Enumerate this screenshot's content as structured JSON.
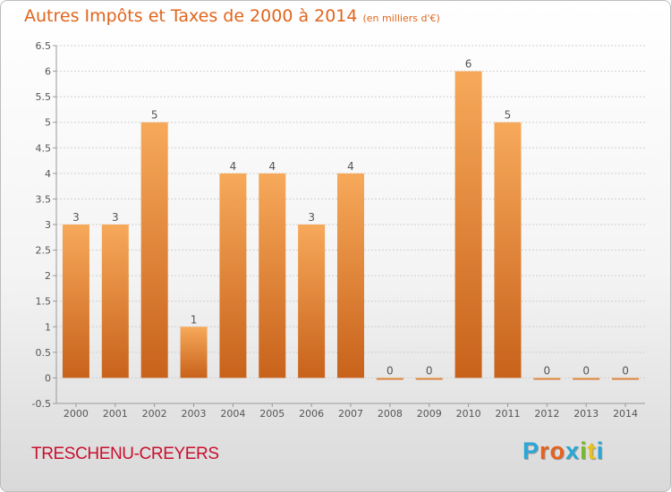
{
  "header": {
    "title": "Autres Impôts et Taxes de 2000 à 2014",
    "subtitle": "(en milliers d'€)"
  },
  "footer": {
    "commune": "TRESCHENU-CREYERS",
    "logo_text": "Proxiti",
    "logo_colors": [
      "#2aa7d6",
      "#e8611c",
      "#e8611c",
      "#2aa7d6",
      "#7ab929",
      "#e8c21c",
      "#2aa7d6"
    ]
  },
  "colors": {
    "bar_top": "#f7a95a",
    "bar_bottom": "#c8621b",
    "grid": "#d0d0d0",
    "axis_text": "#555555",
    "title": "#e0651c"
  },
  "chart_data": {
    "type": "bar",
    "categories": [
      "2000",
      "2001",
      "2002",
      "2003",
      "2004",
      "2005",
      "2006",
      "2007",
      "2008",
      "2009",
      "2010",
      "2011",
      "2012",
      "2013",
      "2014"
    ],
    "values": [
      3,
      3,
      5,
      1,
      4,
      4,
      3,
      4,
      0,
      0,
      6,
      5,
      0,
      0,
      0
    ],
    "data_labels": [
      "3",
      "3",
      "5",
      "1",
      "4",
      "4",
      "3",
      "4",
      "0",
      "0",
      "6",
      "5",
      "0",
      "0",
      "0"
    ],
    "title": "Autres Impôts et Taxes de 2000 à 2014",
    "subtitle": "(en milliers d'€)",
    "ylim": [
      -0.5,
      6.5
    ],
    "yticks": [
      "-0.5",
      "0",
      "0.5",
      "1",
      "1.5",
      "2",
      "2.5",
      "3",
      "3.5",
      "4",
      "4.5",
      "5",
      "5.5",
      "6",
      "6.5"
    ],
    "grid": true
  }
}
